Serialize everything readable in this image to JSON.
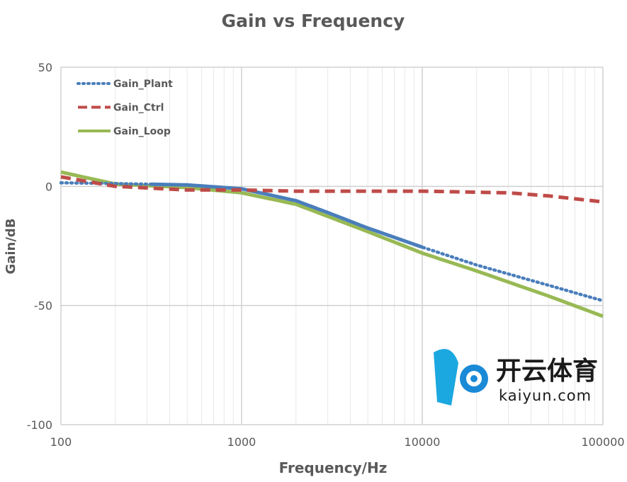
{
  "chart_data": {
    "type": "line",
    "title": "Gain vs Frequency",
    "xlabel": "Frequency/Hz",
    "ylabel": "Gain/dB",
    "xscale": "log",
    "xlim": [
      100,
      100000
    ],
    "ylim": [
      -100,
      50
    ],
    "xticks": [
      "100",
      "1000",
      "10000",
      "100000"
    ],
    "yticks": [
      "50",
      "0",
      "-50",
      "-100"
    ],
    "grid": true,
    "legend": "top-left",
    "series": [
      {
        "name": "Gain_Plant",
        "color": "#4a7ebb",
        "style": "dotted",
        "x": [
          100,
          200,
          500,
          1000,
          2000,
          3000,
          5000,
          10000,
          20000,
          50000,
          100000
        ],
        "y": [
          1.5,
          1.2,
          0.6,
          -1,
          -6,
          -11,
          -17.5,
          -25.5,
          -33,
          -41.5,
          -48
        ]
      },
      {
        "name": "Gain_Ctrl",
        "color": "#be4b48",
        "style": "dashed",
        "x": [
          100,
          200,
          500,
          1000,
          2000,
          10000,
          30000,
          50000,
          100000
        ],
        "y": [
          4,
          0,
          -1.5,
          -1.5,
          -2,
          -2,
          -2.7,
          -4,
          -6.5
        ]
      },
      {
        "name": "Gain_Loop",
        "color": "#98b954",
        "style": "solid",
        "x": [
          100,
          200,
          500,
          1000,
          2000,
          5000,
          10000,
          20000,
          50000,
          100000
        ],
        "y": [
          6,
          1,
          -0.5,
          -2.7,
          -7.5,
          -19,
          -28,
          -35.5,
          -46,
          -54.5
        ]
      }
    ]
  },
  "watermark": {
    "text": "开云体育",
    "url_text": "kaiyun.com"
  }
}
